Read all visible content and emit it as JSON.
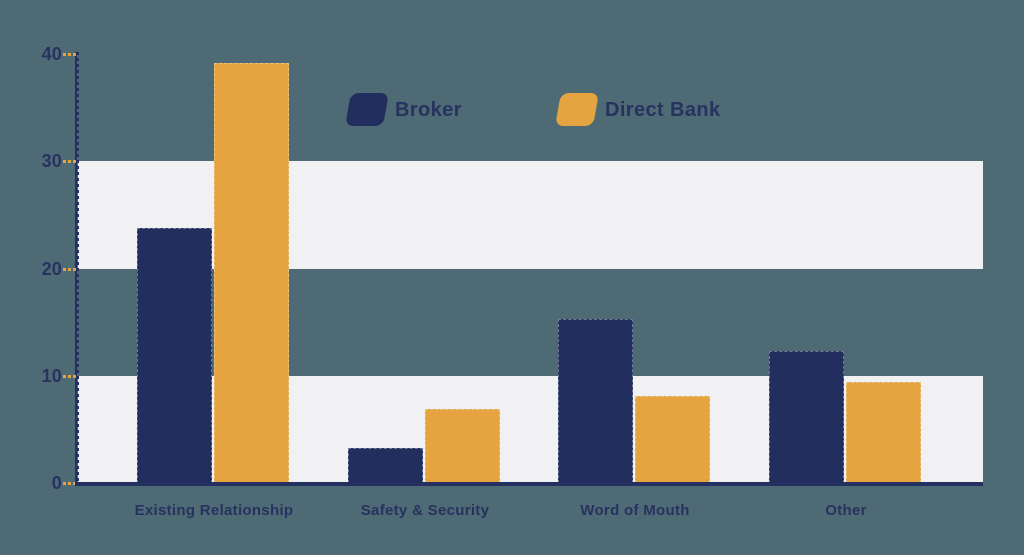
{
  "figure": {
    "background_color": "#4E6A75"
  },
  "colors": {
    "background": "#4E6A75",
    "navy": "#222E5D",
    "orange": "#E6A441",
    "band": "#F1F1F3",
    "axis": "#233060",
    "text": "#28325F",
    "tick_dash": "#E6A441"
  },
  "chart_data": {
    "type": "bar",
    "title": "",
    "xlabel": "",
    "ylabel": "",
    "categories": [
      "Existing Relationship",
      "Safety & Security",
      "Word of Mouth",
      "Other"
    ],
    "series": [
      {
        "name": "Broker",
        "color": "#222E5D",
        "values": [
          23.8,
          3.3,
          15.3,
          12.3
        ]
      },
      {
        "name": "Direct Bank",
        "color": "#E6A441",
        "values": [
          39.2,
          6.9,
          8.1,
          9.4
        ]
      }
    ],
    "ylim": [
      0,
      40
    ],
    "yticks": [
      0,
      10,
      20,
      30,
      40
    ],
    "grid": "alternating-horizontal-bands",
    "band_ranges": [
      [
        0,
        10
      ],
      [
        20,
        30
      ]
    ],
    "band_color": "#F1F1F3",
    "legend_position": "top-center",
    "legend_entries": [
      "Broker",
      "Direct Bank"
    ]
  }
}
